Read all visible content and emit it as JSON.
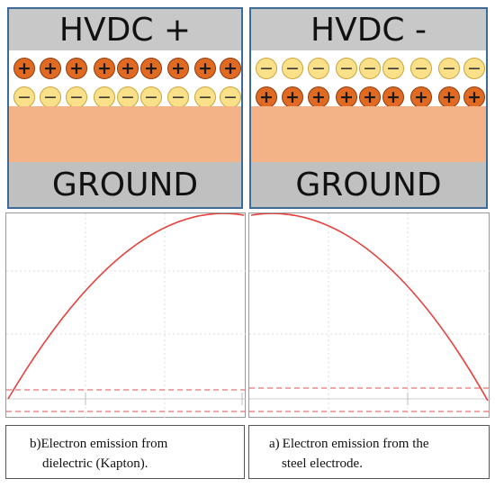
{
  "left_panel": {
    "top_label": "HVDC +",
    "bottom_label": "GROUND"
  },
  "right_panel": {
    "top_label": "HVDC -",
    "bottom_label": "GROUND"
  },
  "charges": {
    "positive_symbol": "+",
    "negative_symbol": "−"
  },
  "captions": {
    "left": {
      "line1": "b)Electron emission from",
      "line2": "dielectric (Kapton)."
    },
    "right": {
      "line1": "a) Electron emission from the",
      "line2": "steel electrode."
    }
  },
  "colors": {
    "curve": "#e8413c",
    "dashed_line": "#ee7272",
    "positive_charge": "#e06a22",
    "negative_charge": "#fbe08a",
    "dielectric": "#f3b387",
    "electrode": "#c0c0c0",
    "panel_border": "#3f6a96"
  }
}
